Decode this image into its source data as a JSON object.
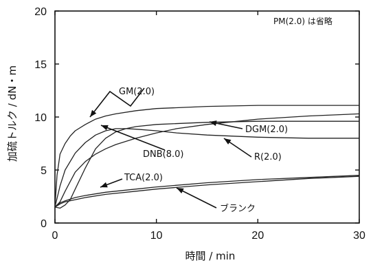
{
  "chart_data": {
    "type": "line",
    "xlabel": "時間 / min",
    "ylabel": "加硫トルク / dN・m",
    "xlim": [
      0,
      30
    ],
    "ylim": [
      0,
      20
    ],
    "x_ticks": [
      0,
      10,
      20,
      30
    ],
    "y_ticks": [
      0,
      5,
      10,
      15,
      20
    ],
    "note": "PM(2.0) は省略",
    "grid": false,
    "series": [
      {
        "name": "GM(2.0)",
        "x": [
          0,
          0.2,
          0.5,
          1,
          1.5,
          2,
          3,
          4,
          5,
          6,
          8,
          10,
          15,
          20,
          25,
          30
        ],
        "y": [
          1.5,
          4.5,
          6.5,
          7.5,
          8.2,
          8.7,
          9.3,
          9.8,
          10.1,
          10.3,
          10.6,
          10.8,
          11.0,
          11.1,
          11.1,
          11.1
        ]
      },
      {
        "name": "DGM(2.0)",
        "x": [
          0,
          0.5,
          1,
          2,
          3,
          4,
          5,
          6,
          8,
          10,
          12,
          15,
          18,
          20,
          25,
          30
        ],
        "y": [
          1.5,
          2.0,
          3.0,
          4.8,
          5.8,
          6.5,
          7.0,
          7.4,
          8.0,
          8.5,
          8.9,
          9.3,
          9.6,
          9.8,
          10.1,
          10.3
        ]
      },
      {
        "name": "DNB(8.0)",
        "x": [
          0,
          0.5,
          1,
          1.5,
          2,
          3,
          4,
          5,
          6,
          7,
          8,
          10,
          15,
          20,
          25,
          30
        ],
        "y": [
          1.5,
          1.4,
          1.7,
          2.2,
          3.2,
          5.2,
          7.0,
          8.0,
          8.6,
          8.9,
          9.1,
          9.3,
          9.5,
          9.6,
          9.6,
          9.6
        ]
      },
      {
        "name": "R(2.0)",
        "x": [
          0,
          0.5,
          1,
          2,
          3,
          4,
          5,
          6,
          7,
          8,
          10,
          12,
          15,
          20,
          25,
          30
        ],
        "y": [
          1.5,
          3.5,
          5.0,
          6.6,
          7.6,
          8.3,
          8.7,
          8.9,
          8.9,
          8.85,
          8.7,
          8.5,
          8.3,
          8.1,
          8.0,
          8.0
        ]
      },
      {
        "name": "TCA(2.0)",
        "x": [
          0,
          0.5,
          1,
          2,
          3,
          5,
          8,
          10,
          15,
          20,
          25,
          30
        ],
        "y": [
          1.5,
          1.9,
          2.1,
          2.4,
          2.6,
          2.9,
          3.2,
          3.4,
          3.8,
          4.1,
          4.3,
          4.5
        ]
      },
      {
        "name": "ブランク",
        "x": [
          0,
          0.5,
          1,
          2,
          3,
          5,
          8,
          10,
          15,
          20,
          25,
          30
        ],
        "y": [
          1.5,
          1.8,
          2.0,
          2.2,
          2.4,
          2.7,
          3.0,
          3.2,
          3.6,
          3.9,
          4.2,
          4.4
        ]
      }
    ],
    "annotations": [
      {
        "text": "GM(2.0)",
        "series": "GM(2.0)"
      },
      {
        "text": "DNB(8.0)",
        "series": "DNB(8.0)"
      },
      {
        "text": "DGM(2.0)",
        "series": "DGM(2.0)"
      },
      {
        "text": "R(2.0)",
        "series": "R(2.0)"
      },
      {
        "text": "TCA(2.0)",
        "series": "TCA(2.0)"
      },
      {
        "text": "ブランク",
        "series": "ブランク"
      }
    ]
  }
}
